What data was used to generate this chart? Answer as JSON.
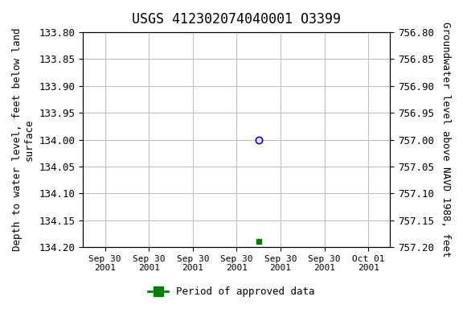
{
  "title": "USGS 412302074040001 O3399",
  "ylabel_left": "Depth to water level, feet below land\nsurface",
  "ylabel_right": "Groundwater level above NAVD 1988, feet",
  "ylim_left": [
    133.8,
    134.2
  ],
  "ylim_right": [
    756.8,
    757.2
  ],
  "yticks_left": [
    133.8,
    133.85,
    133.9,
    133.95,
    134.0,
    134.05,
    134.1,
    134.15,
    134.2
  ],
  "yticks_right": [
    756.8,
    756.85,
    756.9,
    756.95,
    757.0,
    757.05,
    757.1,
    757.15,
    757.2
  ],
  "blue_point_x": 3.5,
  "blue_point_y": 134.0,
  "green_point_x": 3.5,
  "green_point_y": 134.19,
  "x_tick_labels": [
    "Sep 30\n2001",
    "Sep 30\n2001",
    "Sep 30\n2001",
    "Sep 30\n2001",
    "Sep 30\n2001",
    "Sep 30\n2001",
    "Oct 01\n2001"
  ],
  "x_tick_positions": [
    0,
    1,
    2,
    3,
    4,
    5,
    6
  ],
  "xlim": [
    -0.5,
    6.5
  ],
  "background_color": "#ffffff",
  "plot_bg_color": "#ffffff",
  "grid_color": "#c0c0c0",
  "title_fontsize": 12,
  "legend_label": "Period of approved data",
  "legend_color": "#008000"
}
